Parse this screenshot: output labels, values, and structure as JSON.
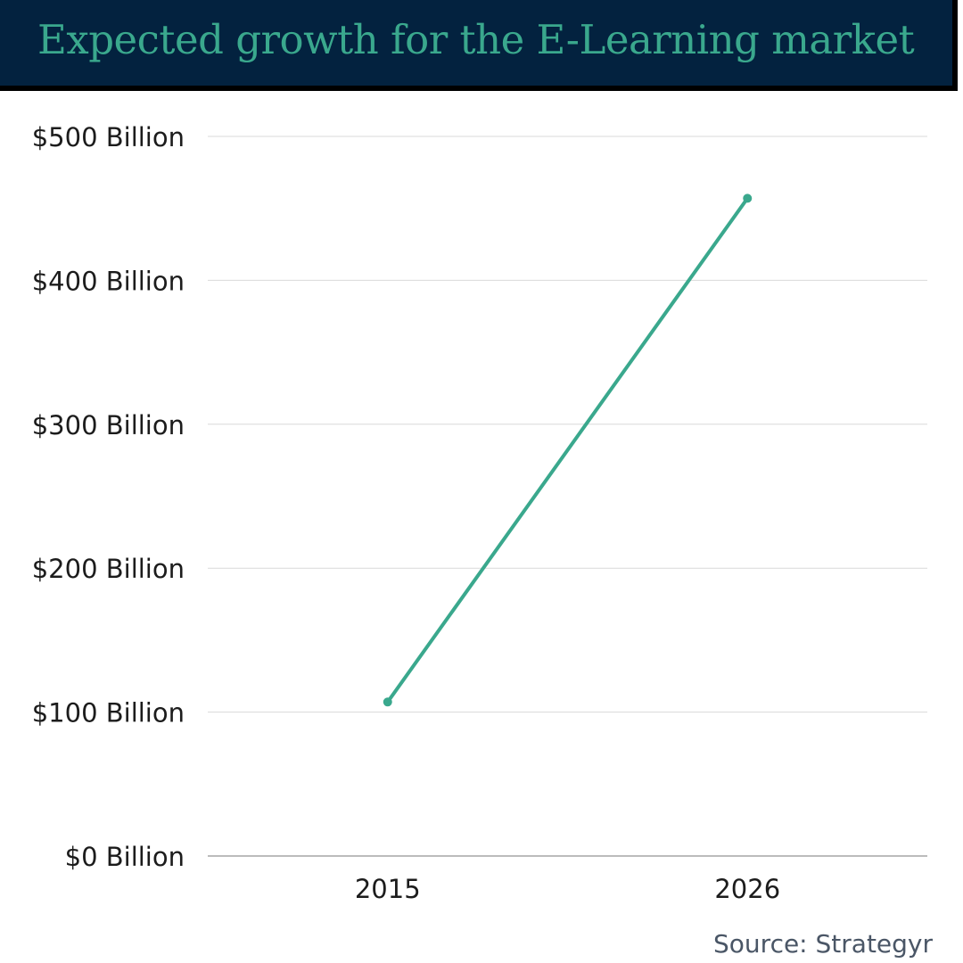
{
  "header": {
    "title": "Expected growth for the E-Learning market"
  },
  "colors": {
    "header_background": "#03223f",
    "title_text": "#3aa88d",
    "series_line": "#3aa88d",
    "gridline": "#d9d9d9",
    "axis_line": "#a6a6a6"
  },
  "chart_data": {
    "type": "line",
    "title": "",
    "xlabel": "",
    "ylabel": "",
    "categories": [
      "2015",
      "2026"
    ],
    "values": [
      107,
      457
    ],
    "ylim": [
      0,
      500
    ],
    "y_ticks": [
      0,
      100,
      200,
      300,
      400,
      500
    ],
    "y_tick_labels": [
      "$0 Billion",
      "$100 Billion",
      "$200 Billion",
      "$300 Billion",
      "$400 Billion",
      "$500 Billion"
    ],
    "grid": true,
    "legend": "none"
  },
  "footer": {
    "source": "Source: Strategyr"
  }
}
